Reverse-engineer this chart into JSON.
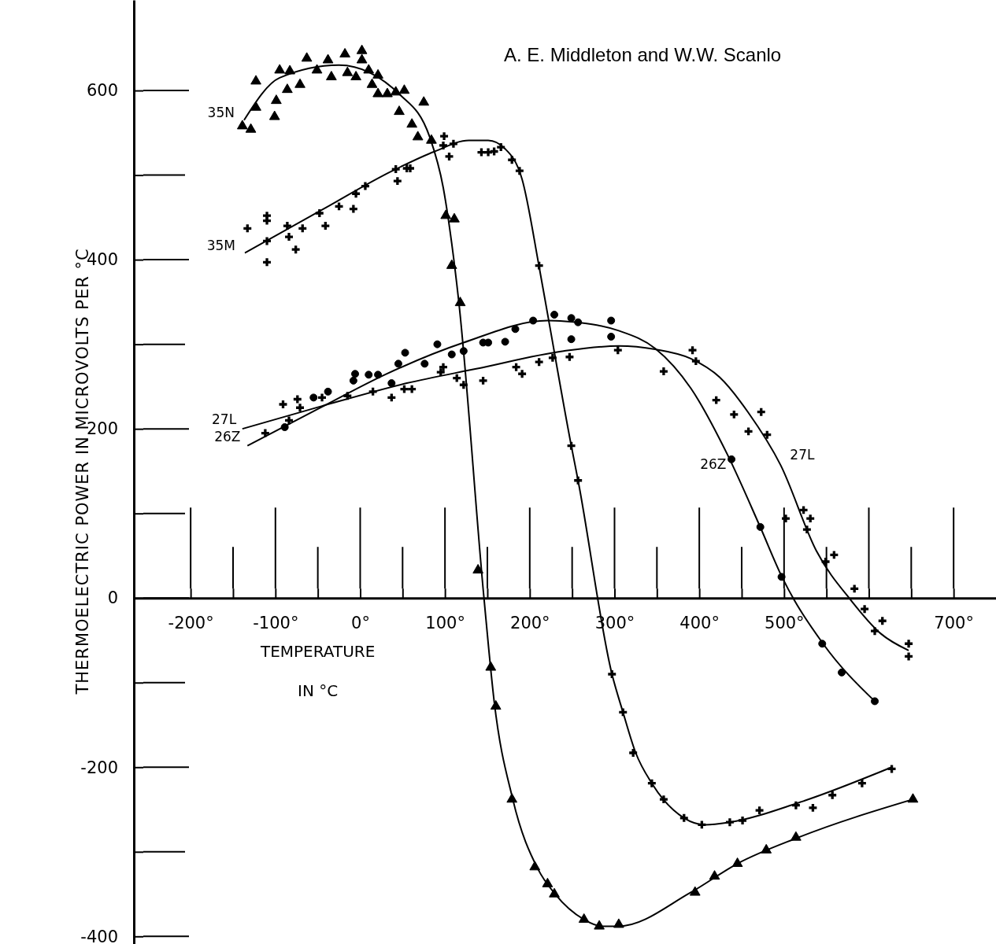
{
  "chart_data": {
    "type": "scatter",
    "ylabel": "THERMOELECTRIC POWER IN MICROVOLTS PER °C",
    "xlabel": "TEMPERATURE\nIN °C",
    "xlim": [
      -267,
      750
    ],
    "ylim": [
      -409,
      707
    ],
    "xticks": [
      {
        "value": -200,
        "label": "-200°"
      },
      {
        "value": -150,
        "label": null
      },
      {
        "value": -100,
        "label": "-100°"
      },
      {
        "value": -50,
        "label": null
      },
      {
        "value": 0,
        "label": "0°"
      },
      {
        "value": 50,
        "label": null
      },
      {
        "value": 100,
        "label": "100°"
      },
      {
        "value": 150,
        "label": null
      },
      {
        "value": 200,
        "label": "200°"
      },
      {
        "value": 250,
        "label": null
      },
      {
        "value": 300,
        "label": "300°"
      },
      {
        "value": 350,
        "label": null
      },
      {
        "value": 400,
        "label": "400°"
      },
      {
        "value": 450,
        "label": null
      },
      {
        "value": 500,
        "label": "500°"
      },
      {
        "value": 550,
        "label": null
      },
      {
        "value": 600,
        "label": null
      },
      {
        "value": 650,
        "label": null
      },
      {
        "value": 700,
        "label": "700°"
      }
    ],
    "yticks": [
      {
        "value": -400,
        "label": "-400"
      },
      {
        "value": -300,
        "label": null
      },
      {
        "value": -200,
        "label": "-200"
      },
      {
        "value": -100,
        "label": null
      },
      0,
      {
        "value": 100,
        "label": null
      },
      200,
      {
        "value": 300,
        "label": null
      },
      400,
      {
        "value": 500,
        "label": null
      },
      600
    ],
    "series": [
      {
        "marker": "triangle",
        "color": "#000000",
        "x": [
          -139,
          -129,
          -123,
          -123,
          -101,
          -99,
          -95,
          -83,
          -86,
          -71,
          -63,
          -51,
          -38,
          -34,
          -18,
          -15,
          -5,
          2,
          2,
          10,
          14,
          21,
          21,
          32,
          42,
          52,
          46,
          75,
          61,
          68,
          84,
          101,
          111,
          108,
          118,
          139,
          154,
          160,
          179,
          206,
          221,
          229,
          264,
          282,
          305,
          395,
          418,
          445,
          479,
          514,
          652
        ],
        "values": [
          558,
          554,
          611,
          580,
          569,
          588,
          624,
          623,
          601,
          607,
          638,
          624,
          636,
          616,
          643,
          621,
          616,
          647,
          636,
          624,
          607,
          618,
          596,
          596,
          598,
          600,
          575,
          586,
          560,
          545,
          541,
          452,
          448,
          393,
          349,
          33,
          -82,
          -128,
          -238,
          -318,
          -338,
          -350,
          -380,
          -388,
          -386,
          -348,
          -329,
          -314,
          -298,
          -283,
          -238
        ]
      },
      {
        "type": "line",
        "color": "#000000",
        "x": [
          -137,
          -95,
          -25,
          48,
          82,
          98,
          108,
          116,
          146,
          158,
          180,
          210,
          230,
          264,
          285,
          305,
          390,
          445,
          517,
          652
        ],
        "values": [
          565,
          615,
          630,
          594,
          545,
          485,
          419,
          353,
          0,
          -122,
          -238,
          -321,
          -350,
          -380,
          -388,
          -388,
          -348,
          -314,
          -283,
          -238
        ]
      },
      {
        "marker": "cross",
        "color": "#000000",
        "x": [
          -133,
          -110,
          -110,
          -110,
          -110,
          -86,
          -84,
          -76,
          -68,
          -48,
          -41,
          -25,
          -8,
          -5,
          6,
          42,
          44,
          55,
          59,
          99,
          98,
          110,
          105,
          143,
          151,
          158,
          166,
          179,
          188,
          211,
          249,
          257,
          297,
          310,
          322,
          344,
          358,
          382,
          403,
          436,
          451,
          471,
          514,
          534,
          557,
          592,
          627
        ],
        "values": [
          437,
          452,
          446,
          422,
          397,
          440,
          427,
          412,
          437,
          455,
          440,
          463,
          460,
          478,
          487,
          507,
          493,
          508,
          508,
          546,
          535,
          537,
          522,
          527,
          527,
          528,
          533,
          518,
          505,
          393,
          180,
          139,
          -90,
          -135,
          -183,
          -219,
          -238,
          -260,
          -268,
          -265,
          -263,
          -251,
          -245,
          -248,
          -233,
          -219,
          -202
        ]
      },
      {
        "type": "line",
        "color": "#000000",
        "x": [
          -136,
          -45,
          38,
          88,
          128,
          151,
          171,
          191,
          211,
          221,
          249,
          257,
          297,
          310,
          325,
          344,
          382,
          407,
          436,
          517,
          627
        ],
        "values": [
          408,
          459,
          505,
          528,
          541,
          541,
          531,
          495,
          392,
          336,
          180,
          139,
          -90,
          -135,
          -183,
          -219,
          -260,
          -268,
          -265,
          -242,
          -200
        ]
      },
      {
        "marker": "circle",
        "color": "#000000",
        "x": [
          -89,
          -55,
          -38,
          -6,
          -8,
          10,
          21,
          37,
          45,
          53,
          76,
          91,
          108,
          122,
          145,
          151,
          171,
          183,
          204,
          229,
          249,
          257,
          249,
          296,
          296,
          438,
          472,
          497,
          545,
          568,
          607
        ],
        "values": [
          202,
          237,
          244,
          265,
          257,
          264,
          264,
          254,
          277,
          290,
          277,
          300,
          288,
          292,
          302,
          302,
          303,
          318,
          328,
          335,
          331,
          326,
          306,
          328,
          309,
          164,
          84,
          25,
          -54,
          -88,
          -122
        ]
      },
      {
        "type": "line",
        "color": "#000000",
        "x": [
          -133,
          -45,
          29,
          122,
          221,
          242,
          305,
          348,
          390,
          433,
          471,
          498,
          546,
          607
        ],
        "values": [
          180,
          226,
          264,
          302,
          328,
          327,
          316,
          295,
          248,
          170,
          86,
          24,
          -54,
          -122
        ]
      },
      {
        "marker": "cross",
        "color": "#000000",
        "x": [
          -112,
          -91,
          -74,
          -71,
          -84,
          -45,
          -15,
          15,
          37,
          52,
          61,
          95,
          98,
          114,
          122,
          145,
          184,
          191,
          211,
          227,
          247,
          304,
          358,
          392,
          396,
          420,
          441,
          473,
          458,
          480,
          502,
          523,
          531,
          527,
          549,
          559,
          583,
          595,
          616,
          607,
          647,
          647
        ],
        "values": [
          195,
          229,
          235,
          225,
          210,
          237,
          239,
          244,
          237,
          247,
          247,
          267,
          273,
          260,
          252,
          257,
          273,
          265,
          279,
          284,
          285,
          293,
          268,
          293,
          280,
          234,
          217,
          220,
          197,
          193,
          94,
          104,
          94,
          81,
          43,
          51,
          11,
          -13,
          -27,
          -39,
          -54,
          -69
        ]
      },
      {
        "type": "line",
        "color": "#000000",
        "x": [
          -139,
          -45,
          55,
          137,
          240,
          305,
          348,
          390,
          424,
          458,
          496,
          538,
          580,
          614,
          647
        ],
        "values": [
          200,
          227,
          254,
          271,
          292,
          298,
          294,
          283,
          261,
          219,
          157,
          56,
          -4,
          -42,
          -62
        ]
      }
    ],
    "annotations": [
      "A. E. Middleton and W.W. Scanlo",
      {
        "text": "35N",
        "x": -137,
        "y": 565
      },
      {
        "text": "35M",
        "x": -136,
        "y": 408
      },
      {
        "text": "27L",
        "x": -135,
        "y": 202
      },
      {
        "text": "26Z",
        "x": -130,
        "y": 182
      },
      {
        "text": "26Z",
        "x": 443,
        "y": 149
      },
      {
        "text": "27L",
        "x": 494,
        "y": 160
      }
    ]
  }
}
